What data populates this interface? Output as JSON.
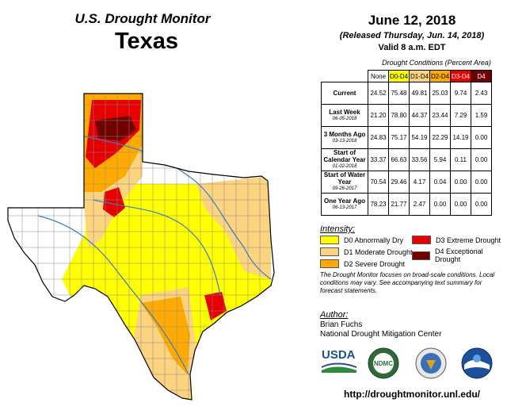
{
  "header": {
    "title": "U.S. Drought Monitor",
    "state": "Texas",
    "date": "June 12, 2018",
    "released": "(Released Thursday, Jun. 14, 2018)",
    "valid": "Valid 8 a.m. EDT"
  },
  "table": {
    "caption": "Drought Conditions (Percent Area)",
    "columns": [
      "None",
      "D0-D4",
      "D1-D4",
      "D2-D4",
      "D3-D4",
      "D4"
    ],
    "column_colors": [
      "#ffffff",
      "#ffff00",
      "#fcd37f",
      "#ffaa00",
      "#e60000",
      "#730000"
    ],
    "rows": [
      {
        "label": "Current",
        "sub": "",
        "values": [
          "24.52",
          "75.48",
          "49.81",
          "25.03",
          "9.74",
          "2.43"
        ]
      },
      {
        "label": "Last Week",
        "sub": "06-05-2018",
        "values": [
          "21.20",
          "78.80",
          "44.37",
          "23.44",
          "7.29",
          "1.59"
        ]
      },
      {
        "label": "3 Months Ago",
        "sub": "03-13-2018",
        "values": [
          "24.83",
          "75.17",
          "54.19",
          "22.29",
          "14.19",
          "0.00"
        ]
      },
      {
        "label": "Start of Calendar Year",
        "sub": "01-02-2018",
        "values": [
          "33.37",
          "66.63",
          "33.56",
          "5.94",
          "0.11",
          "0.00"
        ]
      },
      {
        "label": "Start of Water Year",
        "sub": "09-26-2017",
        "values": [
          "70.54",
          "29.46",
          "4.17",
          "0.04",
          "0.00",
          "0.00"
        ]
      },
      {
        "label": "One Year Ago",
        "sub": "06-13-2017",
        "values": [
          "78.23",
          "21.77",
          "2.47",
          "0.00",
          "0.00",
          "0.00"
        ]
      }
    ]
  },
  "legend": {
    "title": "Intensity:",
    "items": [
      {
        "label": "D0 Abnormally Dry",
        "color": "#ffff00"
      },
      {
        "label": "D1 Moderate Drought",
        "color": "#fcd37f"
      },
      {
        "label": "D2 Severe Drought",
        "color": "#ffaa00"
      },
      {
        "label": "D3 Extreme Drought",
        "color": "#e60000"
      },
      {
        "label": "D4 Exceptional Drought",
        "color": "#730000"
      }
    ]
  },
  "note": "The Drought Monitor focuses on broad-scale conditions. Local conditions may vary. See accompanying text summary for forecast statements.",
  "author": {
    "title": "Author:",
    "name": "Brian Fuchs",
    "org": "National Drought Mitigation Center"
  },
  "logos": {
    "usda": "USDA",
    "ndmc": "NDMC"
  },
  "url": "http://droughtmonitor.unl.edu/"
}
